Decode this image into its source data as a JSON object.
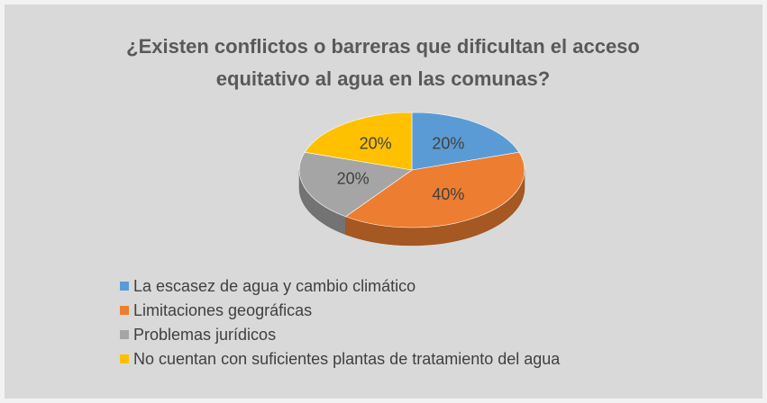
{
  "chart_data": {
    "type": "pie3d",
    "title": "¿Existen conflictos o barreras que dificultan el acceso equitativo al agua en las comunas?",
    "categories": [
      "La escasez de agua y cambio climático",
      "Limitaciones geográficas",
      "Problemas jurídicos",
      "No cuentan con suficientes plantas de tratamiento del agua"
    ],
    "values": [
      20,
      40,
      20,
      20
    ],
    "value_labels": [
      "20%",
      "40%",
      "20%",
      "20%"
    ],
    "colors": [
      "#5b9bd5",
      "#ed7d31",
      "#a5a5a5",
      "#ffc000"
    ],
    "legend": "bottom"
  }
}
